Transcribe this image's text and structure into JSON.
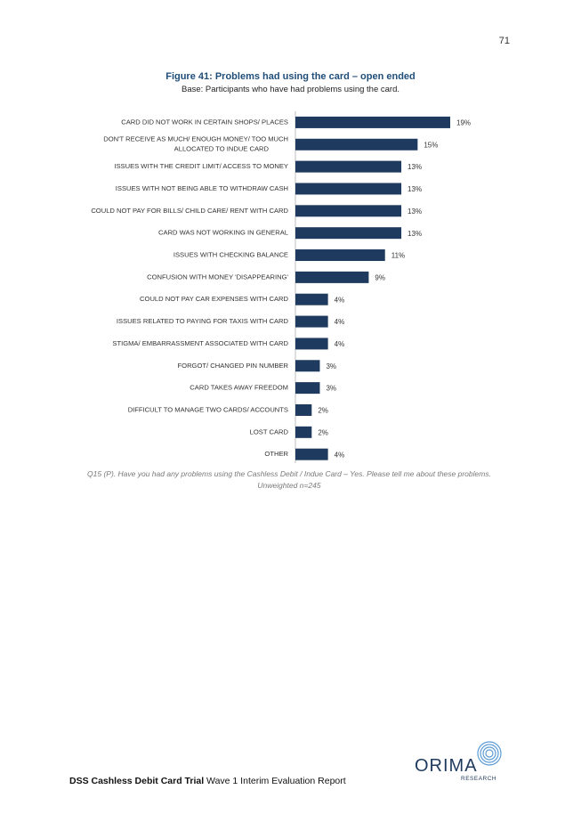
{
  "page_number": "71",
  "figure": {
    "title": "Figure 41: Problems had using the card – open ended",
    "base": "Base: Participants who have had problems using the card."
  },
  "chart_data": {
    "type": "bar",
    "orientation": "horizontal",
    "title": "",
    "xlabel": "",
    "ylabel": "",
    "xlim": [
      0,
      19
    ],
    "grid": false,
    "categories": [
      "CARD DID NOT WORK IN CERTAIN SHOPS/ PLACES",
      "DON'T RECEIVE AS MUCH/ ENOUGH MONEY/ TOO MUCH ALLOCATED TO INDUE CARD",
      "ISSUES WITH THE CREDIT LIMIT/ ACCESS TO MONEY",
      "ISSUES WITH NOT BEING ABLE TO WITHDRAW CASH",
      "COULD NOT PAY FOR BILLS/ CHILD CARE/ RENT WITH CARD",
      "CARD WAS NOT WORKING IN GENERAL",
      "ISSUES WITH CHECKING BALANCE",
      "CONFUSION WITH MONEY 'DISAPPEARING'",
      "COULD NOT PAY CAR EXPENSES WITH CARD",
      "ISSUES RELATED TO PAYING FOR TAXIS WITH CARD",
      "STIGMA/ EMBARRASSMENT ASSOCIATED WITH CARD",
      "FORGOT/ CHANGED PIN NUMBER",
      "CARD TAKES AWAY FREEDOM",
      "DIFFICULT TO MANAGE TWO CARDS/ ACCOUNTS",
      "LOST CARD",
      "OTHER"
    ],
    "values": [
      19,
      15,
      13,
      13,
      13,
      13,
      11,
      9,
      4,
      4,
      4,
      3,
      3,
      2,
      2,
      4
    ],
    "value_labels": [
      "19%",
      "15%",
      "13%",
      "13%",
      "13%",
      "13%",
      "11%",
      "9%",
      "4%",
      "4%",
      "4%",
      "3%",
      "3%",
      "2%",
      "2%",
      "4%"
    ],
    "bar_color": "#1f3a5f"
  },
  "notes": {
    "question": "Q15 (P). Have you had any problems using the Cashless Debit / Indue Card – Yes. Please tell me about these problems.",
    "sample": "Unweighted n=245"
  },
  "footer": {
    "bold": "DSS Cashless Debit Card Trial",
    "rest": " Wave 1 Interim Evaluation Report"
  },
  "logo": {
    "name": "ORIMA",
    "sub": "RESEARCH",
    "color": "#1f3a5f",
    "accent": "#5b9bd5"
  }
}
